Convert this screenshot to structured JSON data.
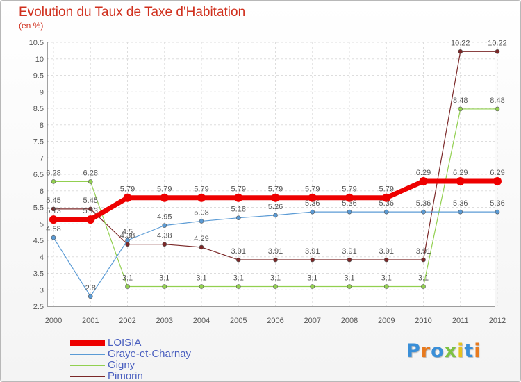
{
  "header": {
    "title": "Evolution du Taux de Taxe d'Habitation",
    "unit": "(en %)"
  },
  "brand": {
    "letters": [
      "P",
      "r",
      "o",
      "x",
      "i",
      "t",
      "i"
    ],
    "colors": [
      "#3a8fd8",
      "#e87a1e",
      "#3a8fd8",
      "#7dc242",
      "#e8c21e",
      "#3a8fd8",
      "#e87a1e"
    ]
  },
  "chart_data": {
    "type": "line",
    "title": "Evolution du Taux de Taxe d'Habitation",
    "ylabel": "(en %)",
    "xlabel": "",
    "x": [
      "2000",
      "2001",
      "2002",
      "2003",
      "2004",
      "2005",
      "2006",
      "2007",
      "2008",
      "2009",
      "2010",
      "2011",
      "2012"
    ],
    "ylim": [
      2.5,
      10.5
    ],
    "yticks": [
      "2.5",
      "3",
      "3.5",
      "4",
      "4.5",
      "5",
      "5.5",
      "6",
      "6.5",
      "7",
      "7.5",
      "8",
      "8.5",
      "9",
      "9.5",
      "10",
      "10.5"
    ],
    "grid": true,
    "legend_position": "bottom-left",
    "series": [
      {
        "name": "LOISIA",
        "color": "#ee0000",
        "values": [
          5.13,
          5.13,
          5.79,
          5.79,
          5.79,
          5.79,
          5.79,
          5.79,
          5.79,
          5.79,
          6.29,
          6.29,
          6.29
        ],
        "labels": [
          "5.13",
          "5.13",
          "5.79",
          "5.79",
          "5.79",
          "5.79",
          "5.79",
          "5.79",
          "5.79",
          "5.79",
          "6.29",
          "6.29",
          "6.29"
        ]
      },
      {
        "name": "Graye-et-Charnay",
        "color": "#5b9bd5",
        "values": [
          4.58,
          2.8,
          4.5,
          4.95,
          5.08,
          5.18,
          5.26,
          5.36,
          5.36,
          5.36,
          5.36,
          5.36,
          5.36
        ],
        "labels": [
          "4.58",
          "2.8",
          "4.5",
          "4.95",
          "5.08",
          "5.18",
          "5.26",
          "5.36",
          "5.36",
          "5.36",
          "5.36",
          "5.36",
          "5.36"
        ]
      },
      {
        "name": "Gigny",
        "color": "#92d050",
        "values": [
          6.28,
          6.28,
          3.1,
          3.1,
          3.1,
          3.1,
          3.1,
          3.1,
          3.1,
          3.1,
          3.1,
          8.48,
          8.48
        ],
        "labels": [
          "6.28",
          "6.28",
          "3.1",
          "3.1",
          "3.1",
          "3.1",
          "3.1",
          "3.1",
          "3.1",
          "3.1",
          "3.1",
          "8.48",
          "8.48"
        ]
      },
      {
        "name": "Pimorin",
        "color": "#7b2828",
        "values": [
          5.45,
          5.45,
          4.38,
          4.38,
          4.29,
          3.91,
          3.91,
          3.91,
          3.91,
          3.91,
          3.91,
          10.22,
          10.22
        ],
        "labels": [
          "5.45",
          "5.45",
          "4.38",
          "4.38",
          "4.29",
          "3.91",
          "3.91",
          "3.91",
          "3.91",
          "3.91",
          "3.91",
          "10.22",
          "10.22"
        ]
      }
    ]
  }
}
